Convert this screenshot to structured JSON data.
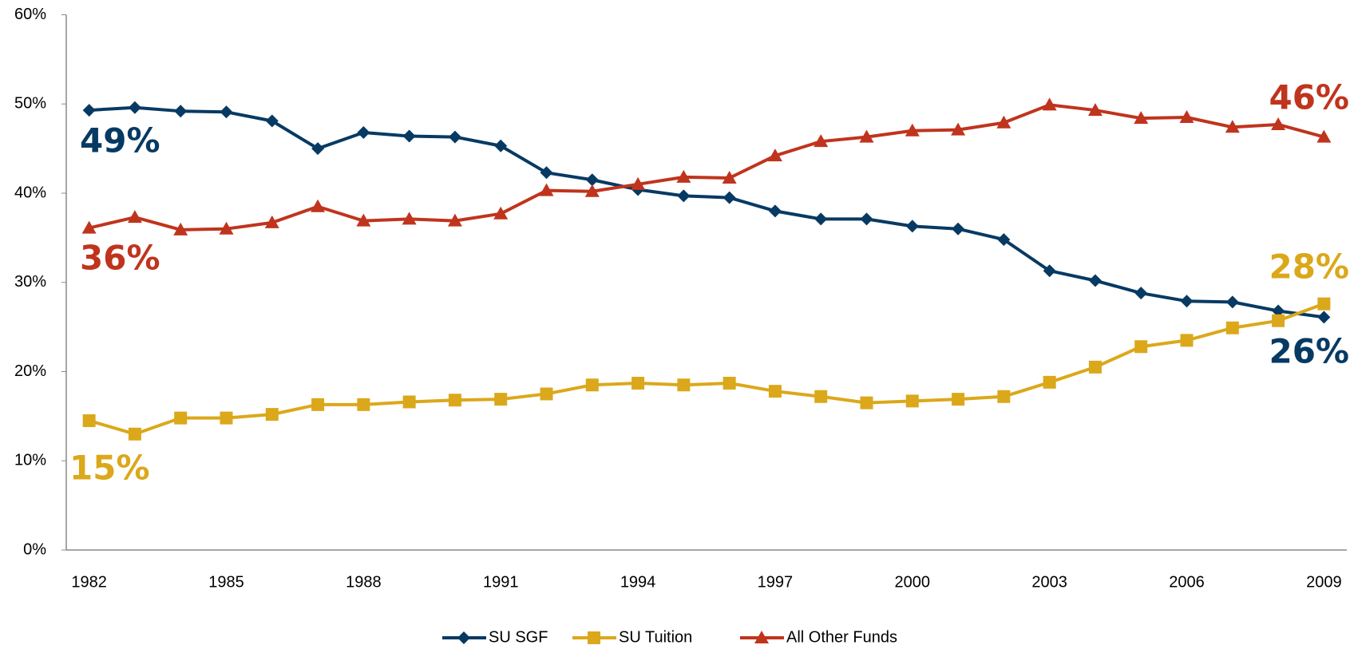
{
  "chart_data": {
    "type": "line",
    "x": [
      1982,
      1983,
      1984,
      1985,
      1986,
      1987,
      1988,
      1989,
      1990,
      1991,
      1992,
      1993,
      1994,
      1995,
      1996,
      1997,
      1998,
      1999,
      2000,
      2001,
      2002,
      2003,
      2004,
      2005,
      2006,
      2007,
      2008,
      2009
    ],
    "xlim": [
      1981.5,
      2009.5
    ],
    "xticks": [
      1982,
      1985,
      1988,
      1991,
      1994,
      1997,
      2000,
      2003,
      2006,
      2009
    ],
    "ylim": [
      0,
      60
    ],
    "yticks": [
      {
        "value": 0,
        "label": "0%"
      },
      {
        "value": 10,
        "label": "10%"
      },
      {
        "value": 20,
        "label": "20%"
      },
      {
        "value": 30,
        "label": "30%"
      },
      {
        "value": 40,
        "label": "40%"
      },
      {
        "value": 50,
        "label": "50%"
      },
      {
        "value": 60,
        "label": "60%"
      }
    ],
    "grid": false,
    "legend": "bottom",
    "series": [
      {
        "name": "SU SGF",
        "color": "#073a63",
        "marker": "diamond",
        "values": [
          49.3,
          49.6,
          49.2,
          49.1,
          48.1,
          45.0,
          46.8,
          46.4,
          46.3,
          45.3,
          42.3,
          41.5,
          40.4,
          39.7,
          39.5,
          38.0,
          37.1,
          37.1,
          36.3,
          36.0,
          34.8,
          31.3,
          30.2,
          28.8,
          27.9,
          27.8,
          26.8,
          26.1
        ]
      },
      {
        "name": "SU Tuition",
        "color": "#dba81b",
        "marker": "square",
        "values": [
          14.5,
          13.0,
          14.8,
          14.8,
          15.2,
          16.3,
          16.3,
          16.6,
          16.8,
          16.9,
          17.5,
          18.5,
          18.7,
          18.5,
          18.7,
          17.8,
          17.2,
          16.5,
          16.7,
          16.9,
          17.2,
          18.8,
          20.5,
          22.8,
          23.5,
          24.9,
          25.7,
          27.6
        ]
      },
      {
        "name": "All Other Funds",
        "color": "#c0341d",
        "marker": "triangle",
        "values": [
          36.1,
          37.3,
          35.9,
          36.0,
          36.7,
          38.5,
          36.9,
          37.1,
          36.9,
          37.7,
          40.3,
          40.2,
          41.0,
          41.8,
          41.7,
          44.2,
          45.8,
          46.3,
          47.0,
          47.1,
          47.9,
          49.9,
          49.3,
          48.4,
          48.5,
          47.4,
          47.7,
          46.3
        ]
      }
    ],
    "annotations": [
      "49%",
      "36%",
      "15%",
      "46%",
      "28%",
      "26%"
    ]
  }
}
